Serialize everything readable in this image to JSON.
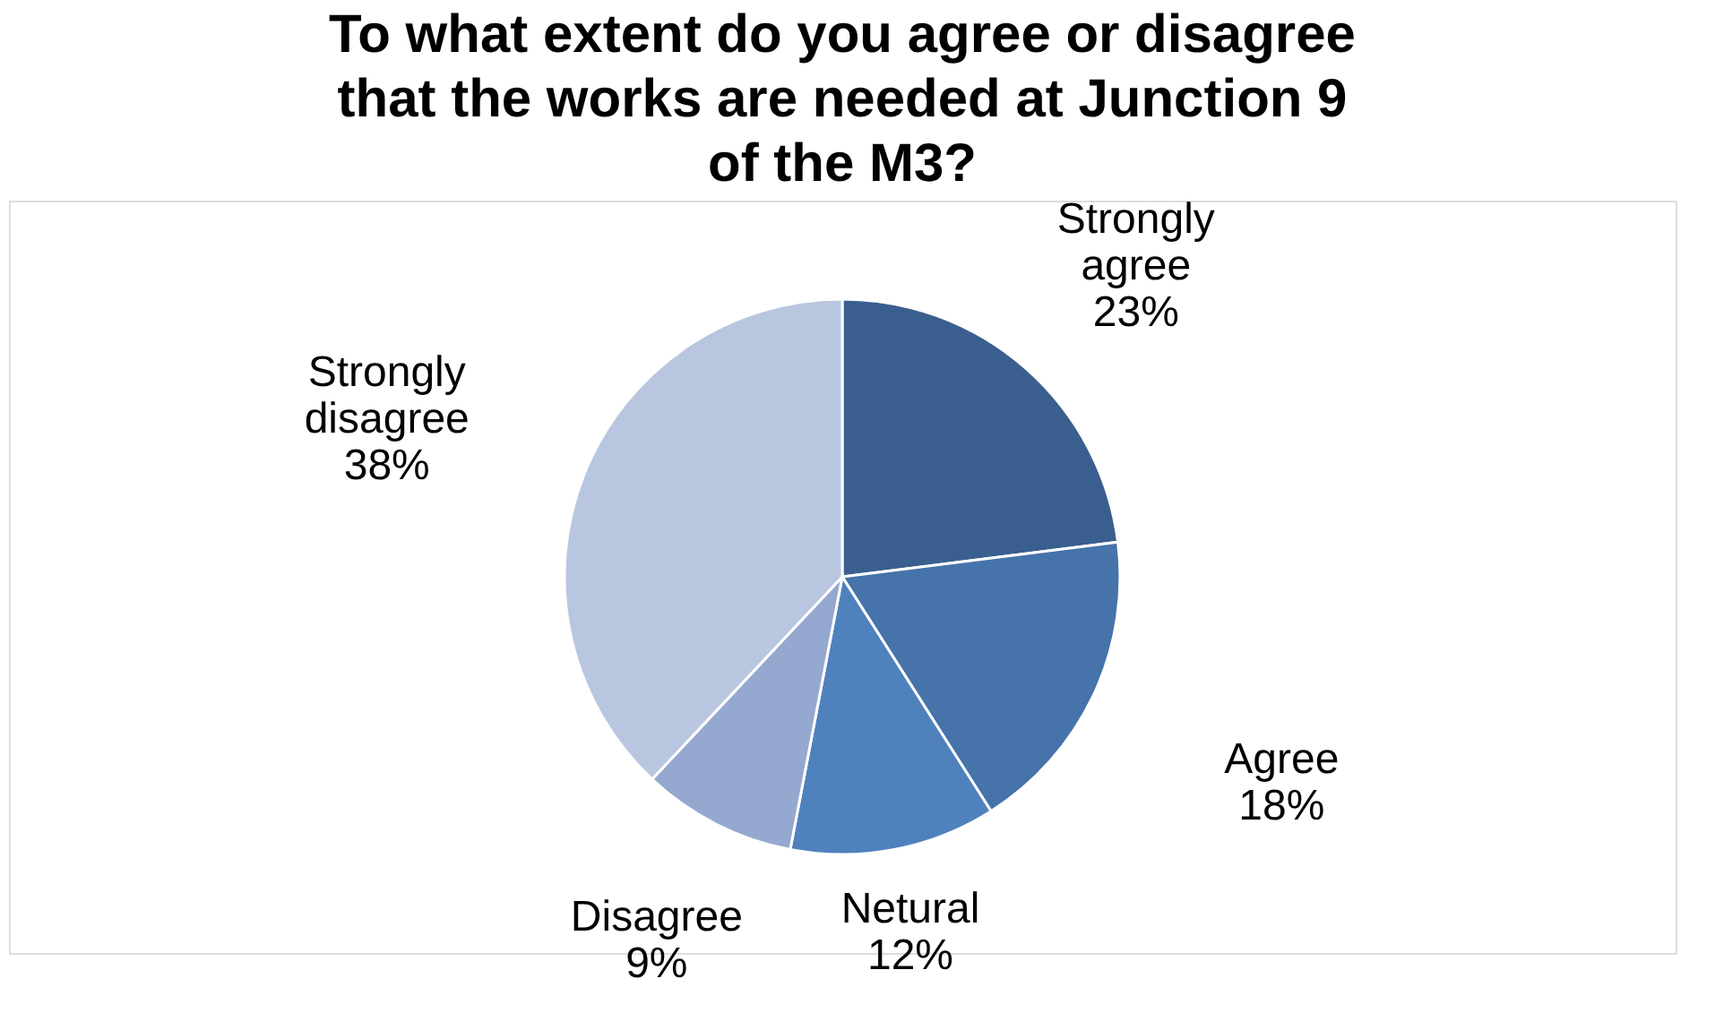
{
  "chart_data": {
    "type": "pie",
    "title": "To what extent do you agree or disagree\nthat the works are needed at Junction 9\nof the M3?",
    "categories": [
      "Strongly agree",
      "Agree",
      "Netural",
      "Disagree",
      "Strongly disagree"
    ],
    "values": [
      23,
      18,
      12,
      9,
      38
    ],
    "value_labels": [
      "23%",
      "18%",
      "12%",
      "9%",
      "38%"
    ],
    "colors": [
      "#3a5f8f",
      "#4573aa",
      "#4f81bd",
      "#95a8cf",
      "#b9c6e0"
    ],
    "legend": false
  }
}
